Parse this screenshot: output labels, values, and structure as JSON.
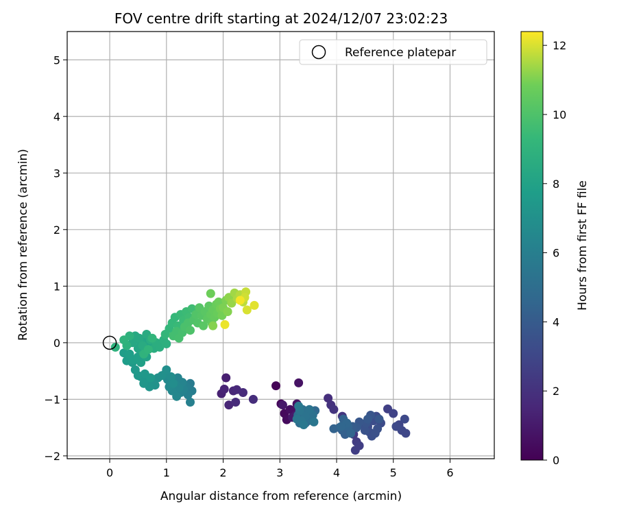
{
  "chart_data": {
    "type": "scatter",
    "title": "FOV centre drift starting at 2024/12/07 23:02:23",
    "xlabel": "Angular distance from reference (arcmin)",
    "ylabel": "Rotation from reference (arcmin)",
    "xlim": [
      -0.75,
      6.78
    ],
    "ylim": [
      -2.05,
      5.5
    ],
    "xticks": [
      0,
      1,
      2,
      3,
      4,
      5,
      6
    ],
    "yticks": [
      -2,
      -1,
      0,
      1,
      2,
      3,
      4,
      5
    ],
    "grid": true,
    "legend": {
      "position": "top-right",
      "entries": [
        "Reference platepar"
      ]
    },
    "reference_point": {
      "label": "Reference platepar",
      "x": 0,
      "y": 0
    },
    "colorbar": {
      "label": "Hours from first FF file",
      "range": [
        0,
        12.4
      ],
      "ticks": [
        0,
        2,
        4,
        6,
        8,
        10,
        12
      ],
      "colormap": "viridis"
    },
    "points": [
      [
        2.93,
        -0.76,
        0.1
      ],
      [
        3.02,
        -1.08,
        0.2
      ],
      [
        3.08,
        -1.25,
        0.3
      ],
      [
        3.12,
        -1.36,
        0.4
      ],
      [
        3.18,
        -1.18,
        0.5
      ],
      [
        3.25,
        -1.22,
        0.6
      ],
      [
        3.3,
        -1.08,
        0.6
      ],
      [
        3.33,
        -0.71,
        0.7
      ],
      [
        3.38,
        -1.34,
        0.8
      ],
      [
        3.22,
        -1.32,
        0.9
      ],
      [
        3.05,
        -1.1,
        0.9
      ],
      [
        3.28,
        -1.28,
        1.0
      ],
      [
        2.05,
        -0.62,
        1.2
      ],
      [
        1.97,
        -0.9,
        1.3
      ],
      [
        2.02,
        -0.82,
        1.4
      ],
      [
        2.1,
        -1.1,
        1.5
      ],
      [
        2.18,
        -0.85,
        1.5
      ],
      [
        2.24,
        -0.83,
        1.6
      ],
      [
        2.22,
        -1.05,
        1.7
      ],
      [
        2.35,
        -0.88,
        1.7
      ],
      [
        2.53,
        -1.0,
        1.8
      ],
      [
        3.85,
        -0.98,
        1.9
      ],
      [
        3.9,
        -1.1,
        2.0
      ],
      [
        3.95,
        -1.18,
        2.1
      ],
      [
        4.1,
        -1.3,
        2.2
      ],
      [
        4.18,
        -1.45,
        2.2
      ],
      [
        4.25,
        -1.55,
        2.3
      ],
      [
        4.3,
        -1.62,
        2.4
      ],
      [
        4.35,
        -1.75,
        2.5
      ],
      [
        4.33,
        -1.9,
        2.6
      ],
      [
        4.4,
        -1.82,
        2.6
      ],
      [
        4.9,
        -1.17,
        2.7
      ],
      [
        5.0,
        -1.25,
        2.8
      ],
      [
        5.1,
        -1.45,
        2.9
      ],
      [
        5.15,
        -1.55,
        3.0
      ],
      [
        5.22,
        -1.6,
        3.0
      ],
      [
        5.2,
        -1.35,
        3.1
      ],
      [
        5.05,
        -1.48,
        3.1
      ],
      [
        4.78,
        -1.42,
        3.2
      ],
      [
        4.7,
        -1.3,
        3.2
      ],
      [
        4.65,
        -1.38,
        3.3
      ],
      [
        4.55,
        -1.48,
        3.3
      ],
      [
        4.58,
        -1.58,
        3.4
      ],
      [
        4.62,
        -1.65,
        3.4
      ],
      [
        4.68,
        -1.6,
        3.5
      ],
      [
        4.72,
        -1.52,
        3.5
      ],
      [
        4.45,
        -1.45,
        3.6
      ],
      [
        4.5,
        -1.55,
        3.6
      ],
      [
        4.6,
        -1.28,
        3.7
      ],
      [
        4.52,
        -1.42,
        3.7
      ],
      [
        4.75,
        -1.35,
        3.8
      ],
      [
        4.4,
        -1.4,
        3.8
      ],
      [
        4.55,
        -1.35,
        3.9
      ],
      [
        4.35,
        -1.5,
        4.0
      ],
      [
        4.28,
        -1.48,
        4.1
      ],
      [
        4.22,
        -1.55,
        4.1
      ],
      [
        4.15,
        -1.62,
        4.2
      ],
      [
        4.1,
        -1.55,
        4.3
      ],
      [
        4.05,
        -1.5,
        4.3
      ],
      [
        3.95,
        -1.52,
        4.4
      ],
      [
        4.12,
        -1.35,
        4.4
      ],
      [
        4.2,
        -1.48,
        4.5
      ],
      [
        4.25,
        -1.6,
        4.5
      ],
      [
        4.18,
        -1.42,
        4.6
      ],
      [
        4.08,
        -1.48,
        4.6
      ],
      [
        3.62,
        -1.2,
        4.7
      ],
      [
        3.55,
        -1.3,
        4.7
      ],
      [
        3.5,
        -1.38,
        4.8
      ],
      [
        3.45,
        -1.42,
        4.8
      ],
      [
        3.42,
        -1.25,
        4.9
      ],
      [
        3.38,
        -1.32,
        4.9
      ],
      [
        3.35,
        -1.42,
        5.0
      ],
      [
        3.32,
        -1.28,
        5.0
      ],
      [
        3.4,
        -1.18,
        5.1
      ],
      [
        3.48,
        -1.22,
        5.1
      ],
      [
        3.55,
        -1.35,
        5.2
      ],
      [
        3.58,
        -1.28,
        5.2
      ],
      [
        3.52,
        -1.18,
        5.3
      ],
      [
        3.45,
        -1.3,
        5.3
      ],
      [
        3.38,
        -1.38,
        5.4
      ],
      [
        3.35,
        -1.2,
        5.4
      ],
      [
        3.6,
        -1.4,
        5.5
      ],
      [
        3.3,
        -1.35,
        5.5
      ],
      [
        3.42,
        -1.45,
        5.6
      ],
      [
        3.33,
        -1.12,
        5.6
      ],
      [
        1.42,
        -0.72,
        5.8
      ],
      [
        1.45,
        -0.85,
        5.9
      ],
      [
        1.38,
        -0.92,
        6.0
      ],
      [
        1.35,
        -0.78,
        6.0
      ],
      [
        1.42,
        -1.05,
        6.1
      ],
      [
        1.3,
        -0.82,
        6.2
      ],
      [
        1.25,
        -0.88,
        6.2
      ],
      [
        1.28,
        -0.7,
        6.3
      ],
      [
        1.2,
        -0.62,
        6.3
      ],
      [
        1.22,
        -0.8,
        6.4
      ],
      [
        1.15,
        -0.72,
        6.4
      ],
      [
        1.1,
        -0.85,
        6.5
      ],
      [
        1.18,
        -0.95,
        6.5
      ],
      [
        1.05,
        -0.78,
        6.6
      ],
      [
        1.02,
        -0.65,
        6.6
      ],
      [
        0.98,
        -0.55,
        6.7
      ],
      [
        1.08,
        -0.6,
        6.8
      ],
      [
        1.12,
        -0.72,
        6.8
      ],
      [
        1.0,
        -0.48,
        6.9
      ],
      [
        0.92,
        -0.58,
        7.0
      ],
      [
        0.85,
        -0.62,
        7.0
      ],
      [
        0.8,
        -0.75,
        7.1
      ],
      [
        0.75,
        -0.68,
        7.1
      ],
      [
        0.7,
        -0.78,
        7.2
      ],
      [
        0.65,
        -0.65,
        7.2
      ],
      [
        0.6,
        -0.72,
        7.3
      ],
      [
        0.55,
        -0.6,
        7.3
      ],
      [
        0.5,
        -0.58,
        7.4
      ],
      [
        0.62,
        -0.55,
        7.4
      ],
      [
        0.72,
        -0.62,
        7.5
      ],
      [
        0.45,
        -0.48,
        7.5
      ],
      [
        0.4,
        -0.35,
        7.6
      ],
      [
        0.35,
        -0.28,
        7.6
      ],
      [
        0.3,
        -0.32,
        7.7
      ],
      [
        0.25,
        -0.18,
        7.7
      ],
      [
        0.35,
        -0.2,
        7.8
      ],
      [
        0.42,
        -0.3,
        7.8
      ],
      [
        0.5,
        -0.25,
        7.9
      ],
      [
        0.55,
        -0.35,
        7.9
      ],
      [
        0.6,
        -0.15,
        8.0
      ],
      [
        0.65,
        -0.25,
        8.0
      ],
      [
        0.7,
        -0.05,
        8.1
      ],
      [
        0.62,
        0.05,
        8.1
      ],
      [
        0.55,
        0.0,
        8.2
      ],
      [
        0.5,
        -0.1,
        8.2
      ],
      [
        0.45,
        0.05,
        8.3
      ],
      [
        0.4,
        0.0,
        8.3
      ],
      [
        0.45,
        0.12,
        8.4
      ],
      [
        0.52,
        0.08,
        8.4
      ],
      [
        0.58,
        -0.05,
        8.5
      ],
      [
        0.65,
        0.15,
        8.5
      ],
      [
        0.72,
        0.05,
        8.6
      ],
      [
        0.78,
        -0.1,
        8.6
      ],
      [
        0.82,
        0.0,
        8.7
      ],
      [
        0.88,
        -0.08,
        8.7
      ],
      [
        0.95,
        0.05,
        8.8
      ],
      [
        1.0,
        -0.02,
        8.8
      ],
      [
        0.35,
        0.12,
        8.9
      ],
      [
        0.3,
        -0.05,
        8.9
      ],
      [
        0.1,
        -0.08,
        8.9
      ],
      [
        0.25,
        0.05,
        9.0
      ],
      [
        0.6,
        -0.2,
        9.0
      ],
      [
        0.68,
        -0.12,
        9.1
      ],
      [
        0.75,
        0.08,
        9.1
      ],
      [
        0.98,
        0.15,
        9.2
      ],
      [
        1.05,
        0.25,
        9.2
      ],
      [
        1.1,
        0.35,
        9.3
      ],
      [
        1.15,
        0.45,
        9.3
      ],
      [
        1.2,
        0.3,
        9.4
      ],
      [
        1.25,
        0.5,
        9.4
      ],
      [
        1.3,
        0.4,
        9.5
      ],
      [
        1.35,
        0.55,
        9.5
      ],
      [
        1.4,
        0.45,
        9.6
      ],
      [
        1.45,
        0.6,
        9.6
      ],
      [
        1.12,
        0.12,
        9.7
      ],
      [
        1.18,
        0.2,
        9.7
      ],
      [
        1.22,
        0.08,
        9.8
      ],
      [
        1.28,
        0.18,
        9.8
      ],
      [
        1.32,
        0.28,
        9.9
      ],
      [
        1.38,
        0.35,
        9.9
      ],
      [
        1.42,
        0.22,
        10.0
      ],
      [
        1.48,
        0.4,
        10.0
      ],
      [
        1.52,
        0.5,
        10.1
      ],
      [
        1.55,
        0.35,
        10.1
      ],
      [
        1.58,
        0.62,
        10.2
      ],
      [
        1.62,
        0.48,
        10.2
      ],
      [
        1.65,
        0.3,
        10.3
      ],
      [
        1.68,
        0.55,
        10.3
      ],
      [
        1.72,
        0.42,
        10.4
      ],
      [
        1.75,
        0.65,
        10.4
      ],
      [
        1.78,
        0.5,
        10.5
      ],
      [
        1.8,
        0.35,
        10.5
      ],
      [
        1.82,
        0.58,
        10.6
      ],
      [
        1.85,
        0.45,
        10.6
      ],
      [
        1.88,
        0.68,
        10.7
      ],
      [
        1.9,
        0.52,
        10.7
      ],
      [
        1.78,
        0.87,
        10.8
      ],
      [
        1.92,
        0.72,
        10.8
      ],
      [
        1.95,
        0.6,
        10.9
      ],
      [
        1.98,
        0.48,
        10.9
      ],
      [
        2.0,
        0.62,
        11.0
      ],
      [
        2.05,
        0.75,
        11.0
      ],
      [
        2.08,
        0.55,
        11.1
      ],
      [
        1.82,
        0.3,
        11.1
      ],
      [
        2.1,
        0.8,
        11.2
      ],
      [
        2.15,
        0.7,
        11.3
      ],
      [
        2.2,
        0.88,
        11.4
      ],
      [
        2.25,
        0.78,
        11.5
      ],
      [
        2.3,
        0.85,
        11.6
      ],
      [
        2.35,
        0.72,
        11.7
      ],
      [
        2.4,
        0.9,
        11.8
      ],
      [
        2.38,
        0.8,
        11.9
      ],
      [
        2.42,
        0.58,
        12.0
      ],
      [
        2.55,
        0.66,
        12.1
      ],
      [
        2.03,
        0.32,
        12.2
      ],
      [
        2.3,
        0.75,
        12.3
      ]
    ]
  }
}
